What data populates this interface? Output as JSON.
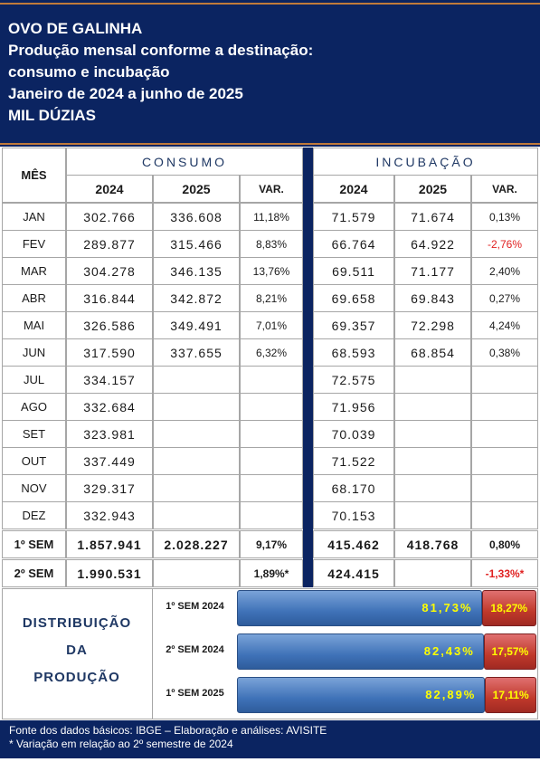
{
  "header": {
    "lines": [
      "OVO DE GALINHA",
      "Produção mensal conforme a destinação:",
      "consumo e incubação",
      "Janeiro de 2024 a junho de 2025",
      "MIL DÚZIAS"
    ]
  },
  "table": {
    "month_header": "MÊS",
    "consumo_header": "CONSUMO",
    "incubacao_header": "INCUBAÇÃO",
    "subheaders": [
      "2024",
      "2025",
      "VAR.",
      "2024",
      "2025",
      "VAR."
    ],
    "rows": [
      [
        "JAN",
        "302.766",
        "336.608",
        "11,18%",
        "71.579",
        "71.674",
        "0,13%"
      ],
      [
        "FEV",
        "289.877",
        "315.466",
        "8,83%",
        "66.764",
        "64.922",
        "-2,76%"
      ],
      [
        "MAR",
        "304.278",
        "346.135",
        "13,76%",
        "69.511",
        "71.177",
        "2,40%"
      ],
      [
        "ABR",
        "316.844",
        "342.872",
        "8,21%",
        "69.658",
        "69.843",
        "0,27%"
      ],
      [
        "MAI",
        "326.586",
        "349.491",
        "7,01%",
        "69.357",
        "72.298",
        "4,24%"
      ],
      [
        "JUN",
        "317.590",
        "337.655",
        "6,32%",
        "68.593",
        "68.854",
        "0,38%"
      ],
      [
        "JUL",
        "334.157",
        null,
        null,
        "72.575",
        null,
        null
      ],
      [
        "AGO",
        "332.684",
        null,
        null,
        "71.956",
        null,
        null
      ],
      [
        "SET",
        "323.981",
        null,
        null,
        "70.039",
        null,
        null
      ],
      [
        "OUT",
        "337.449",
        null,
        null,
        "71.522",
        null,
        null
      ],
      [
        "NOV",
        "329.317",
        null,
        null,
        "68.170",
        null,
        null
      ],
      [
        "DEZ",
        "332.943",
        null,
        null,
        "70.153",
        null,
        null
      ]
    ],
    "summary": [
      [
        "1º SEM",
        "1.857.941",
        "2.028.227",
        "9,17%",
        "415.462",
        "418.768",
        "0,80%"
      ],
      [
        "2º SEM",
        "1.990.531",
        null,
        "1,89%*",
        "424.415",
        null,
        "-1,33%*"
      ]
    ]
  },
  "distribution": {
    "title_lines": [
      "DISTRIBUIÇÃO",
      "DA",
      "PRODUÇÃO"
    ],
    "bars": [
      {
        "label": "1º SEM 2024",
        "consumo": {
          "value": 81.73,
          "label": "81,73%"
        },
        "incubacao": {
          "value": 18.27,
          "label": "18,27%"
        }
      },
      {
        "label": "2º SEM 2024",
        "consumo": {
          "value": 82.43,
          "label": "82,43%"
        },
        "incubacao": {
          "value": 17.57,
          "label": "17,57%"
        }
      },
      {
        "label": "1º SEM 2025",
        "consumo": {
          "value": 82.89,
          "label": "82,89%"
        },
        "incubacao": {
          "value": 17.11,
          "label": "17,11%"
        }
      }
    ]
  },
  "footer": {
    "lines": [
      "Fonte dos dados básicos: IBGE – Elaboração e análises: AVISITE",
      "* Variação em relação ao 2º semestre de 2024"
    ]
  }
}
